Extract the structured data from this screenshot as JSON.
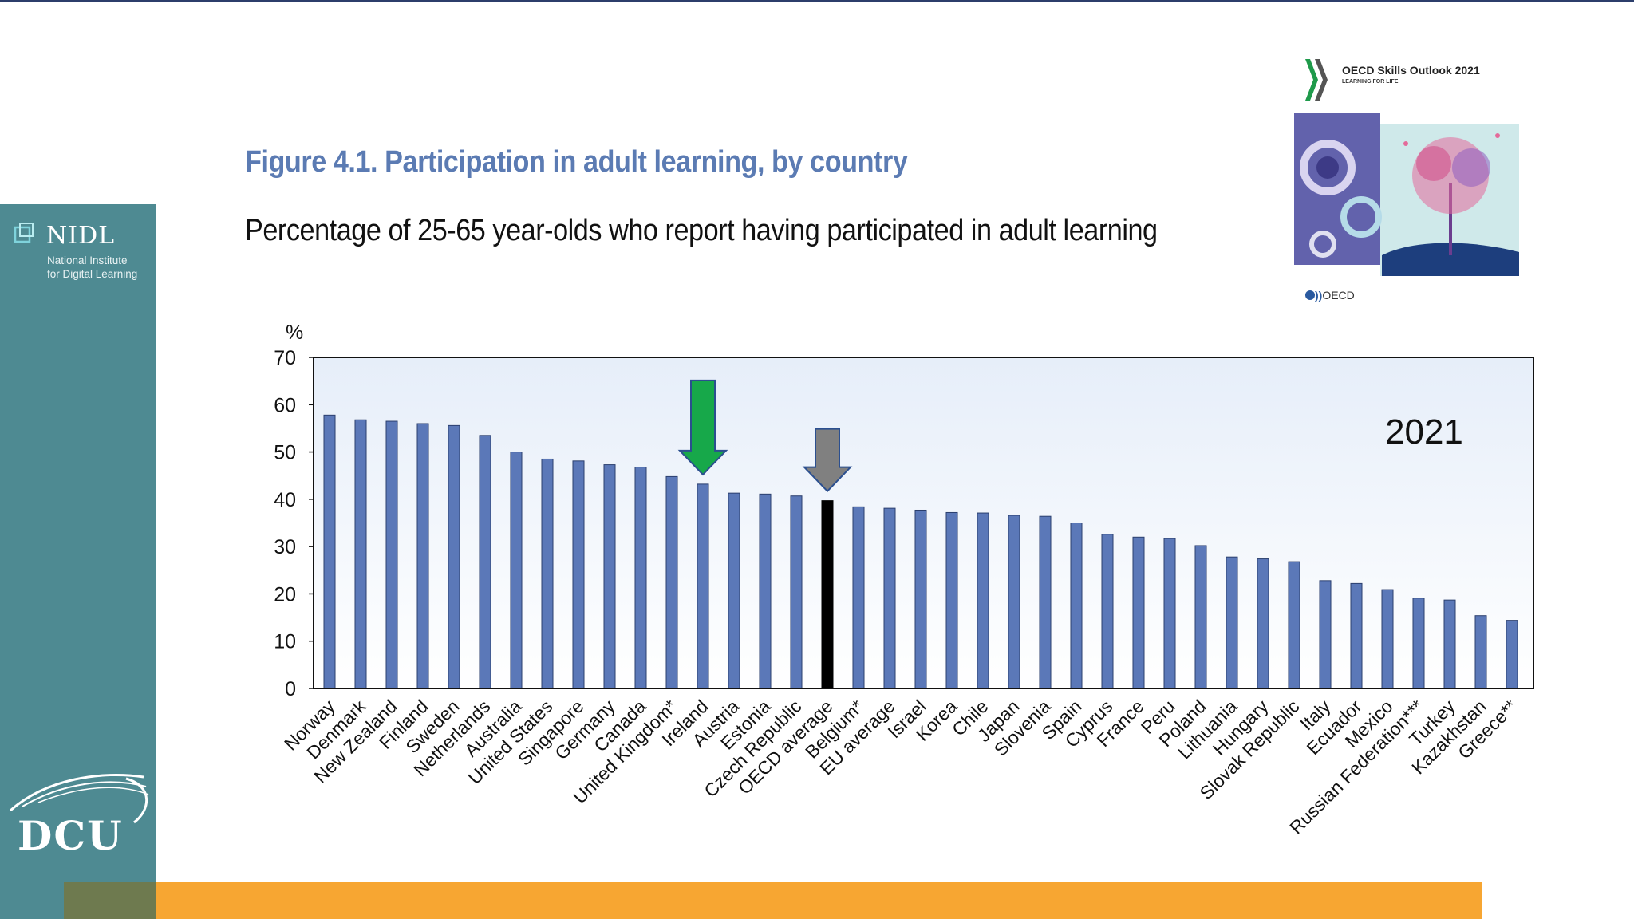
{
  "sidebar": {
    "logo_name": "NIDL",
    "logo_sub_line1": "National Institute",
    "logo_sub_line2": "for Digital Learning",
    "university": "DCU"
  },
  "figure": {
    "title": "Figure 4.1. Participation in adult learning, by country",
    "subtitle": "Percentage of 25-65 year-olds who report having participated in adult learning"
  },
  "cover": {
    "title": "OECD Skills Outlook 2021",
    "tagline": "LEARNING FOR LIFE",
    "publisher": "OECD"
  },
  "colors": {
    "bar": "#5b78b8",
    "highlight_bar": "#000000",
    "green_arrow": "#17a84a",
    "grey_arrow": "#808080",
    "sidebar": "#4e8a92",
    "footer": "#f7a632",
    "title": "#5b7bb3"
  },
  "chart_data": {
    "type": "bar",
    "ylabel": "%",
    "ylim": [
      0,
      70
    ],
    "yticks": [
      0,
      10,
      20,
      30,
      40,
      50,
      60,
      70
    ],
    "annotation": "2021",
    "grid": false,
    "categories": [
      "Norway",
      "Denmark",
      "New Zealand",
      "Finland",
      "Sweden",
      "Netherlands",
      "Australia",
      "United States",
      "Singapore",
      "Germany",
      "Canada",
      "United Kingdom*",
      "Ireland",
      "Austria",
      "Estonia",
      "Czech Republic",
      "OECD average",
      "Belgium*",
      "EU average",
      "Israel",
      "Korea",
      "Chile",
      "Japan",
      "Slovenia",
      "Spain",
      "Cyprus",
      "France",
      "Peru",
      "Poland",
      "Lithuania",
      "Hungary",
      "Slovak Republic",
      "Italy",
      "Ecuador",
      "Mexico",
      "Russian Federation***",
      "Turkey",
      "Kazakhstan",
      "Greece**"
    ],
    "values": [
      57.8,
      56.8,
      56.5,
      56.0,
      55.6,
      53.5,
      50.0,
      48.5,
      48.1,
      47.3,
      46.8,
      44.8,
      43.2,
      41.3,
      41.1,
      40.7,
      39.7,
      38.4,
      38.1,
      37.7,
      37.2,
      37.1,
      36.6,
      36.4,
      35.0,
      32.6,
      32.0,
      31.7,
      30.2,
      27.8,
      27.4,
      26.8,
      22.8,
      22.2,
      20.9,
      19.1,
      18.7,
      15.4,
      14.4
    ],
    "highlighted": [
      "OECD average"
    ],
    "markers": [
      {
        "category": "Ireland",
        "color": "green"
      },
      {
        "category": "OECD average",
        "color": "grey"
      }
    ]
  }
}
